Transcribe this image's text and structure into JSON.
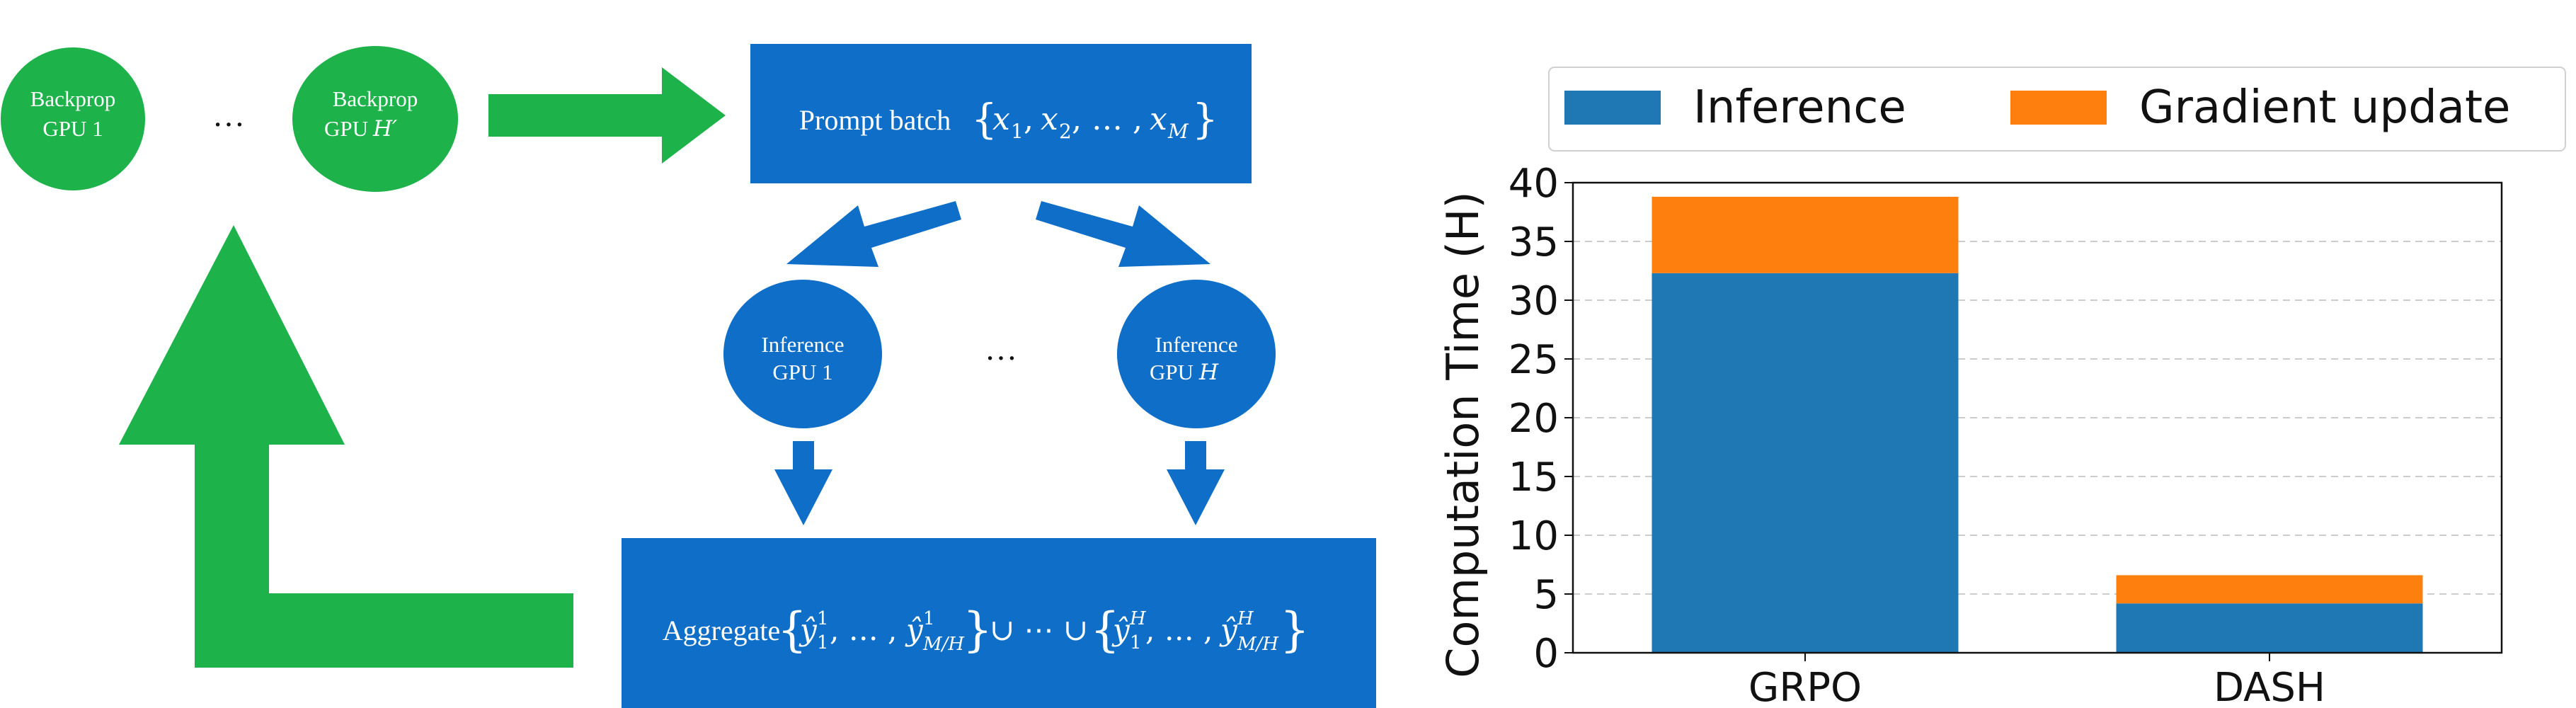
{
  "diagram": {
    "backprop_gpu_1": {
      "line1": "Backprop",
      "line2": "GPU 1"
    },
    "backprop_gpu_h": {
      "line1": "Backprop",
      "line2": "GPU",
      "var": "H′"
    },
    "backprop_ellipsis": "…",
    "prompt_batch": {
      "label": "Prompt batch",
      "math": "{x₁, x₂, …, x_M}"
    },
    "inference_gpu_1": {
      "line1": "Inference",
      "line2": "GPU 1"
    },
    "inference_gpu_h": {
      "line1": "Inference",
      "line2": "GPU",
      "var": "H"
    },
    "inference_ellipsis": "…",
    "aggregate": {
      "label": "Aggregate",
      "math": "{ŷ₁¹, …, ŷ¹_M/H} ∪ ⋯ ∪ {ŷ₁ᴴ, …, ŷᴴ_M/H}"
    },
    "colors": {
      "green": "#1db34a",
      "blue": "#0f6ec7"
    }
  },
  "chart_data": {
    "type": "bar",
    "stacked": true,
    "categories": [
      "GRPO",
      "DASH"
    ],
    "series": [
      {
        "name": "Inference",
        "values": [
          32.3,
          4.2
        ],
        "color": "#1f77b4"
      },
      {
        "name": "Gradient update",
        "values": [
          6.5,
          2.4
        ],
        "color": "#ff7f0e"
      }
    ],
    "ylabel": "Computation Time (H)",
    "xlabel": "",
    "ylim": [
      0,
      40
    ],
    "yticks": [
      0,
      5,
      10,
      15,
      20,
      25,
      30,
      35,
      40
    ],
    "grid": "horizontal dashed",
    "legend_position": "top"
  }
}
